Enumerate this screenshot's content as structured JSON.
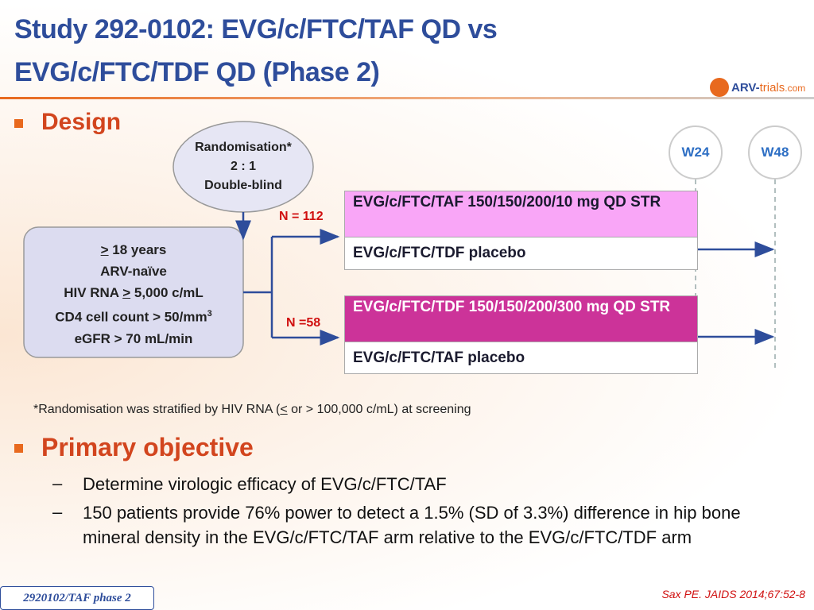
{
  "header": {
    "title_line1": "Study 292-0102: EVG/c/FTC/TAF QD vs",
    "title_line2": "EVG/c/FTC/TDF QD (Phase 2)",
    "logo": {
      "part1": "ARV-",
      "part2": "trials",
      "part3": ".com"
    }
  },
  "design": {
    "heading": "Design",
    "randomisation": [
      "Randomisation*",
      "2 : 1",
      "Double-blind"
    ],
    "eligibility": {
      "age": {
        "symbol": ">",
        "text": "18 years"
      },
      "arv": "ARV-naïve",
      "hiv_rna": {
        "before": "HIV RNA",
        "symbol": ">",
        "after": "5,000 c/mL"
      },
      "cd4": {
        "text": "CD4 cell count > 50/mm",
        "sup": "3"
      },
      "egfr": "eGFR > 70 mL/min"
    },
    "timepoints": [
      "W24",
      "W48"
    ],
    "arms": [
      {
        "n": "N = 112",
        "active": "EVG/c/FTC/TAF 150/150/200/10 mg QD STR",
        "placebo": "EVG/c/FTC/TDF placebo"
      },
      {
        "n": "N =58",
        "active": "EVG/c/FTC/TDF 150/150/200/300 mg QD STR",
        "placebo": "EVG/c/FTC/TAF placebo"
      }
    ],
    "footnote": {
      "before": "*Randomisation was stratified by HIV RNA (",
      "symbol": "<",
      "after": " or > 100,000 c/mL) at screening"
    }
  },
  "objective": {
    "heading": "Primary objective",
    "items": [
      "Determine virologic efficacy of EVG/c/FTC/TAF",
      "150 patients provide 76% power to detect a 1.5% (SD of 3.3%) difference in hip bone mineral density in the EVG/c/FTC/TAF arm relative to the EVG/c/FTC/TDF arm"
    ]
  },
  "footer": {
    "tag": "2920102/TAF phase 2",
    "citation": "Sax PE. JAIDS 2014;67:52-8"
  }
}
